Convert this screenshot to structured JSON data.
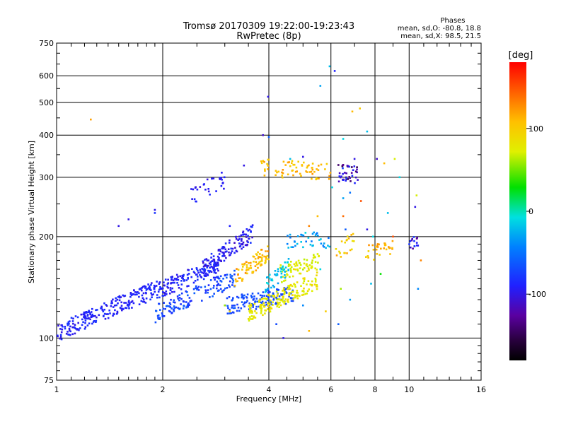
{
  "title_line1": "Tromsø 20170309 19:22:00-19:23:43",
  "title_line2": "RwPretec (8p)",
  "phases": {
    "heading": "Phases",
    "line_o": "mean, sd,O: -80.8, 18.8",
    "line_x": "mean, sd,X:  98.5, 21.5"
  },
  "colorbar": {
    "unit_label": "[deg]",
    "ticks": [
      "100",
      "0",
      "-100"
    ],
    "tick_values": [
      100,
      0,
      -100
    ],
    "range": [
      -180,
      180
    ]
  },
  "chart_data": {
    "type": "scatter",
    "xlabel": "Frequency [MHz]",
    "ylabel": "Stationary phase Virtual Height [km]",
    "xscale": "log",
    "yscale": "log",
    "xlim": [
      1,
      16
    ],
    "ylim": [
      75,
      750
    ],
    "x_ticks": [
      1,
      2,
      4,
      6,
      8,
      10,
      16
    ],
    "x_tick_labels": [
      "1",
      "2",
      "4",
      "6",
      "8",
      "10",
      "16"
    ],
    "y_ticks": [
      75,
      100,
      200,
      300,
      400,
      500,
      600,
      750
    ],
    "y_tick_labels": [
      "75",
      "100",
      "200",
      "300",
      "400",
      "500",
      "600",
      "750"
    ],
    "grid": true,
    "color_variable": "phase [deg]",
    "traces": [
      {
        "f_start": 1.0,
        "f_end": 2.9,
        "h_start": 103,
        "h_end": 162,
        "phase": -90,
        "spread": 12,
        "n": 380
      },
      {
        "f_start": 1.9,
        "f_end": 3.2,
        "h_start": 118,
        "h_end": 150,
        "phase": -72,
        "spread": 14,
        "n": 140
      },
      {
        "f_start": 2.6,
        "f_end": 3.6,
        "h_start": 160,
        "h_end": 205,
        "phase": -95,
        "spread": 18,
        "n": 120
      },
      {
        "f_start": 3.0,
        "f_end": 4.7,
        "h_start": 125,
        "h_end": 135,
        "phase": -70,
        "spread": 8,
        "n": 140
      },
      {
        "f_start": 3.5,
        "f_end": 5.5,
        "h_start": 118,
        "h_end": 148,
        "phase": 80,
        "spread": 12,
        "n": 170
      },
      {
        "f_start": 4.3,
        "f_end": 5.6,
        "h_start": 155,
        "h_end": 170,
        "phase": 75,
        "spread": 12,
        "n": 70
      },
      {
        "f_start": 3.2,
        "f_end": 4.0,
        "h_start": 150,
        "h_end": 180,
        "phase": 110,
        "spread": 20,
        "n": 80
      },
      {
        "f_start": 3.9,
        "f_end": 4.6,
        "h_start": 142,
        "h_end": 165,
        "phase": -20,
        "spread": 15,
        "n": 45
      },
      {
        "f_start": 3.8,
        "f_end": 6.0,
        "h_start": 322,
        "h_end": 310,
        "phase": 110,
        "spread": 15,
        "n": 70
      },
      {
        "f_start": 6.2,
        "f_end": 7.2,
        "h_start": 310,
        "h_end": 305,
        "phase": -110,
        "spread": 40,
        "n": 40
      },
      {
        "f_start": 2.4,
        "f_end": 3.0,
        "h_start": 265,
        "h_end": 295,
        "phase": -95,
        "spread": 10,
        "n": 30
      },
      {
        "f_start": 4.5,
        "f_end": 6.0,
        "h_start": 195,
        "h_end": 195,
        "phase": -30,
        "spread": 20,
        "n": 40
      },
      {
        "f_start": 7.5,
        "f_end": 9.0,
        "h_start": 180,
        "h_end": 185,
        "phase": 110,
        "spread": 20,
        "n": 30
      },
      {
        "f_start": 6.2,
        "f_end": 7.0,
        "h_start": 180,
        "h_end": 195,
        "phase": 100,
        "spread": 20,
        "n": 20
      },
      {
        "f_start": 10.0,
        "f_end": 10.6,
        "h_start": 185,
        "h_end": 200,
        "phase": -100,
        "spread": 30,
        "n": 15
      }
    ],
    "scattered_points": [
      [
        1.25,
        445,
        120
      ],
      [
        3.98,
        520,
        -100
      ],
      [
        5.6,
        560,
        -30
      ],
      [
        5.95,
        640,
        -20
      ],
      [
        6.15,
        620,
        -90
      ],
      [
        6.9,
        470,
        110
      ],
      [
        7.25,
        480,
        100
      ],
      [
        7.6,
        410,
        -20
      ],
      [
        6.5,
        390,
        -10
      ],
      [
        3.85,
        400,
        -110
      ],
      [
        4.0,
        395,
        -60
      ],
      [
        7.0,
        340,
        -100
      ],
      [
        5.0,
        345,
        -100
      ],
      [
        4.6,
        340,
        -20
      ],
      [
        8.1,
        340,
        -110
      ],
      [
        9.1,
        340,
        70
      ],
      [
        8.5,
        330,
        110
      ],
      [
        3.4,
        325,
        -100
      ],
      [
        9.4,
        300,
        -10
      ],
      [
        1.9,
        240,
        -100
      ],
      [
        1.9,
        235,
        -80
      ],
      [
        1.6,
        225,
        -100
      ],
      [
        1.5,
        215,
        -100
      ],
      [
        10.5,
        265,
        70
      ],
      [
        10.4,
        245,
        -100
      ],
      [
        7.3,
        255,
        150
      ],
      [
        6.8,
        270,
        -50
      ],
      [
        6.5,
        260,
        -30
      ],
      [
        3.1,
        215,
        -90
      ],
      [
        3.3,
        200,
        -100
      ],
      [
        6.05,
        280,
        -10
      ],
      [
        6.5,
        230,
        140
      ],
      [
        8.7,
        235,
        -20
      ],
      [
        5.2,
        215,
        130
      ],
      [
        5.5,
        230,
        110
      ],
      [
        7.9,
        200,
        -10
      ],
      [
        7.6,
        210,
        -100
      ],
      [
        6.6,
        210,
        -60
      ],
      [
        9.0,
        200,
        150
      ],
      [
        10.8,
        170,
        130
      ],
      [
        10.6,
        140,
        -40
      ],
      [
        4.4,
        100,
        -100
      ],
      [
        3.0,
        125,
        60
      ],
      [
        6.4,
        140,
        60
      ],
      [
        6.8,
        130,
        -30
      ],
      [
        5.8,
        120,
        100
      ],
      [
        6.3,
        110,
        -60
      ],
      [
        5.2,
        105,
        110
      ],
      [
        3.1,
        120,
        100
      ],
      [
        7.8,
        145,
        -20
      ],
      [
        8.3,
        155,
        30
      ],
      [
        4.2,
        110,
        -70
      ],
      [
        5.0,
        125,
        -40
      ],
      [
        5.6,
        160,
        -10
      ]
    ]
  }
}
